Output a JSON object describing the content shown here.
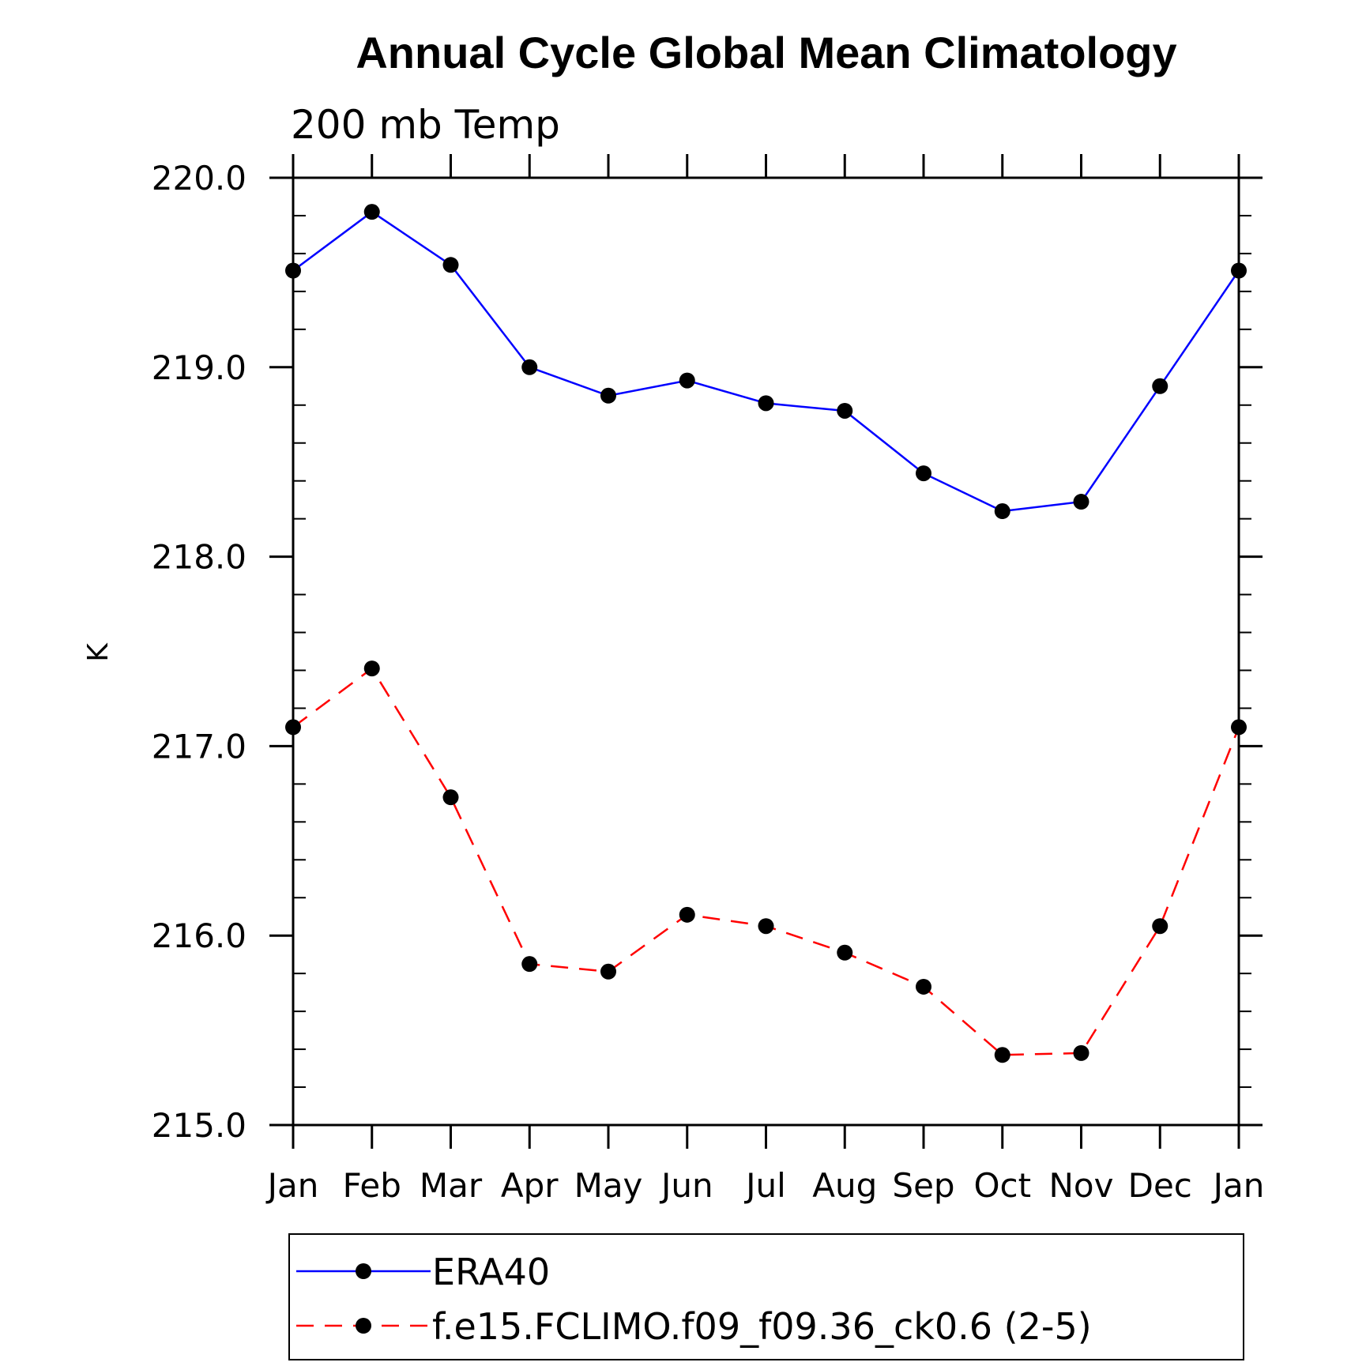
{
  "chart_data": {
    "type": "line",
    "title": "Annual Cycle Global Mean Climatology",
    "subtitle": "200 mb Temp",
    "xlabel": "",
    "ylabel": "K",
    "categories": [
      "Jan",
      "Feb",
      "Mar",
      "Apr",
      "May",
      "Jun",
      "Jul",
      "Aug",
      "Sep",
      "Oct",
      "Nov",
      "Dec",
      "Jan"
    ],
    "ylim": [
      215.0,
      220.0
    ],
    "yticks": [
      "215.0",
      "216.0",
      "217.0",
      "218.0",
      "219.0",
      "220.0"
    ],
    "grid": false,
    "legend_position": "bottom",
    "series": [
      {
        "name": "ERA40",
        "color": "#0000ff",
        "dash": "solid",
        "marker": "filled-circle",
        "values": [
          219.51,
          219.82,
          219.54,
          219.0,
          218.85,
          218.93,
          218.81,
          218.77,
          218.44,
          218.24,
          218.29,
          218.9,
          219.51
        ]
      },
      {
        "name": "f.e15.FCLIMO.f09_f09.36_ck0.6 (2-5)",
        "color": "#ff0000",
        "dash": "dashed",
        "marker": "filled-circle",
        "values": [
          217.1,
          217.41,
          216.73,
          215.85,
          215.81,
          216.11,
          216.05,
          215.91,
          215.73,
          215.37,
          215.38,
          216.05,
          217.1
        ]
      }
    ]
  }
}
